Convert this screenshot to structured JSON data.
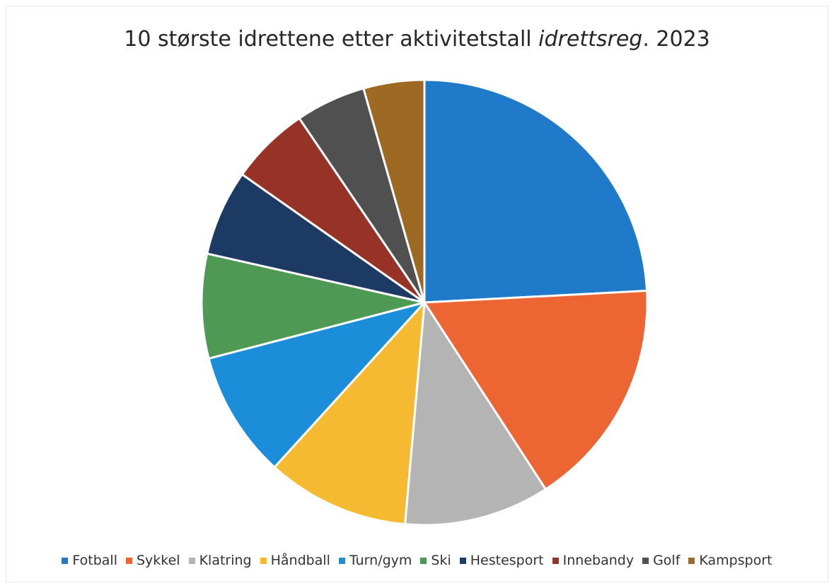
{
  "chart_data": {
    "type": "pie",
    "title_prefix": "10 største idrettene etter aktivitetstall ",
    "title_italic": "idrettsreg",
    "title_suffix": ". 2023",
    "categories": [
      "Fotball",
      "Sykkel",
      "Klatring",
      "Håndball",
      "Turn/gym",
      "Ski",
      "Hestesport",
      "Innebandy",
      "Golf",
      "Kampsport"
    ],
    "values": [
      25.2,
      17.4,
      11.0,
      10.8,
      9.6,
      7.9,
      6.5,
      6.0,
      5.3,
      4.6
    ],
    "colors": [
      "#1f7ac9",
      "#ee6534",
      "#b4b4b4",
      "#f5ba32",
      "#1b8dd9",
      "#4e9a55",
      "#1c3a64",
      "#963226",
      "#505050",
      "#9e6a23"
    ],
    "legend_position": "bottom",
    "start_angle": "12 o'clock, clockwise"
  }
}
